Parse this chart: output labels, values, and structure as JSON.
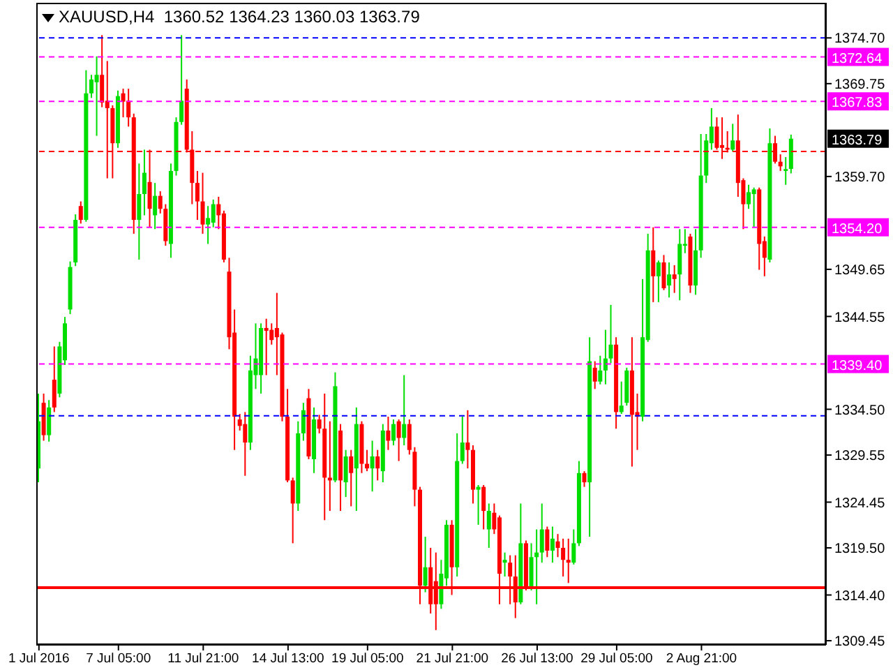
{
  "chart_data": {
    "type": "candlestick",
    "title": "XAUUSD,H4  1360.52 1364.23 1360.03 1363.79",
    "categories": [
      "1 Jul 2016",
      null,
      null,
      null,
      null,
      null,
      null,
      null,
      null,
      null,
      null,
      null,
      null,
      null,
      null,
      "7 Jul 05:00",
      null,
      null,
      null,
      null,
      null,
      null,
      null,
      null,
      null,
      null,
      null,
      null,
      null,
      null,
      null,
      "11 Jul 21:00",
      null,
      null,
      null,
      null,
      null,
      null,
      null,
      null,
      null,
      null,
      null,
      null,
      null,
      null,
      null,
      "14 Jul 13:00",
      null,
      null,
      null,
      null,
      null,
      null,
      null,
      null,
      null,
      null,
      null,
      null,
      null,
      null,
      "19 Jul 05:00",
      null,
      null,
      null,
      null,
      null,
      null,
      null,
      null,
      null,
      null,
      null,
      null,
      null,
      null,
      null,
      "21 Jul 21:00",
      null,
      null,
      null,
      null,
      null,
      null,
      null,
      null,
      null,
      null,
      null,
      null,
      null,
      null,
      null,
      "26 Jul 13:00",
      null,
      null,
      null,
      null,
      null,
      null,
      null,
      null,
      null,
      null,
      null,
      null,
      null,
      null,
      "29 Jul 05:00",
      null,
      null,
      null,
      null,
      null,
      null,
      null,
      null,
      null,
      null,
      null,
      null,
      null,
      null,
      null,
      "2 Aug 21:00",
      null,
      null,
      null,
      null,
      null,
      null,
      null,
      null,
      null,
      null,
      null,
      null,
      null,
      null,
      null,
      null,
      null,
      null,
      null,
      null,
      null,
      null,
      null
    ],
    "ohlc": [
      [
        1328.1,
        1336.2,
        1326.6,
        1333.2
      ],
      [
        1335.2,
        1336.2,
        1331.1,
        1331.7
      ],
      [
        1331.7,
        1335.5,
        1331.0,
        1334.7
      ],
      [
        1337.7,
        1341.3,
        1334.2,
        1334.7
      ],
      [
        1336.2,
        1341.8,
        1335.8,
        1341.3
      ],
      [
        1339.8,
        1344.5,
        1339.3,
        1343.8
      ],
      [
        1345.3,
        1350.5,
        1344.8,
        1349.9
      ],
      [
        1350.4,
        1355.6,
        1350.0,
        1355.0
      ],
      [
        1356.5,
        1357.0,
        1354.6,
        1355.0
      ],
      [
        1355.0,
        1371.2,
        1354.8,
        1368.7
      ],
      [
        1368.7,
        1370.7,
        1368.2,
        1370.2
      ],
      [
        1369.9,
        1372.7,
        1364.1,
        1370.7
      ],
      [
        1370.7,
        1375.0,
        1367.2,
        1367.7
      ],
      [
        1367.9,
        1372.2,
        1359.5,
        1367.1
      ],
      [
        1367.1,
        1367.4,
        1359.5,
        1363.3
      ],
      [
        1363.3,
        1369.0,
        1362.8,
        1368.4
      ],
      [
        1368.7,
        1369.2,
        1366.1,
        1367.8
      ],
      [
        1367.9,
        1369.2,
        1365.1,
        1366.1
      ],
      [
        1366.1,
        1366.5,
        1353.5,
        1355.0
      ],
      [
        1355.0,
        1361.1,
        1350.7,
        1357.8
      ],
      [
        1357.8,
        1362.6,
        1355.5,
        1360.1
      ],
      [
        1359.1,
        1362.6,
        1354.2,
        1356.2
      ],
      [
        1355.5,
        1359.0,
        1354.0,
        1357.6
      ],
      [
        1357.6,
        1358.1,
        1355.7,
        1356.2
      ],
      [
        1356.2,
        1356.7,
        1352.2,
        1352.7
      ],
      [
        1352.4,
        1361.1,
        1350.9,
        1360.3
      ],
      [
        1360.3,
        1366.1,
        1359.8,
        1365.6
      ],
      [
        1365.6,
        1375.0,
        1365.3,
        1367.9
      ],
      [
        1369.2,
        1370.2,
        1362.3,
        1362.6
      ],
      [
        1362.6,
        1364.6,
        1356.7,
        1359.0
      ],
      [
        1359.0,
        1360.3,
        1355.0,
        1357.0
      ],
      [
        1357.0,
        1360.1,
        1353.5,
        1354.5
      ],
      [
        1354.5,
        1356.5,
        1352.4,
        1355.2
      ],
      [
        1354.7,
        1357.2,
        1354.2,
        1356.7
      ],
      [
        1356.7,
        1357.5,
        1354.0,
        1355.5
      ],
      [
        1355.7,
        1356.0,
        1350.4,
        1350.7
      ],
      [
        1349.4,
        1350.9,
        1341.0,
        1342.3
      ],
      [
        1342.8,
        1345.3,
        1330.1,
        1333.7
      ],
      [
        1333.4,
        1334.0,
        1332.2,
        1332.7
      ],
      [
        1332.9,
        1334.2,
        1327.3,
        1330.9
      ],
      [
        1330.9,
        1340.3,
        1330.1,
        1338.7
      ],
      [
        1338.2,
        1343.8,
        1336.7,
        1340.0
      ],
      [
        1338.2,
        1343.8,
        1336.2,
        1343.3
      ],
      [
        1343.3,
        1344.3,
        1338.2,
        1343.0
      ],
      [
        1343.1,
        1343.8,
        1341.5,
        1342.0
      ],
      [
        1343.3,
        1347.1,
        1338.2,
        1342.3
      ],
      [
        1342.6,
        1342.8,
        1333.2,
        1333.7
      ],
      [
        1333.7,
        1336.7,
        1326.6,
        1326.8
      ],
      [
        1326.8,
        1327.1,
        1320.0,
        1324.3
      ],
      [
        1324.3,
        1333.2,
        1323.5,
        1331.9
      ],
      [
        1331.9,
        1335.2,
        1331.1,
        1334.4
      ],
      [
        1335.7,
        1336.7,
        1329.1,
        1329.4
      ],
      [
        1329.1,
        1334.7,
        1327.6,
        1333.4
      ],
      [
        1333.4,
        1333.9,
        1331.9,
        1332.4
      ],
      [
        1332.4,
        1336.2,
        1322.5,
        1327.1
      ],
      [
        1327.1,
        1333.2,
        1323.5,
        1326.8
      ],
      [
        1326.8,
        1338.5,
        1326.6,
        1337.0
      ],
      [
        1332.2,
        1332.9,
        1323.5,
        1326.8
      ],
      [
        1326.6,
        1330.1,
        1325.0,
        1329.4
      ],
      [
        1329.4,
        1330.1,
        1324.0,
        1327.6
      ],
      [
        1328.1,
        1334.7,
        1323.5,
        1332.9
      ],
      [
        1332.9,
        1333.2,
        1327.6,
        1328.6
      ],
      [
        1328.6,
        1330.1,
        1327.8,
        1328.1
      ],
      [
        1328.1,
        1331.1,
        1325.6,
        1329.4
      ],
      [
        1329.4,
        1330.1,
        1326.8,
        1328.1
      ],
      [
        1327.8,
        1332.9,
        1326.6,
        1332.2
      ],
      [
        1332.2,
        1333.7,
        1330.1,
        1331.1
      ],
      [
        1331.1,
        1333.4,
        1330.6,
        1332.9
      ],
      [
        1333.2,
        1333.4,
        1328.9,
        1331.4
      ],
      [
        1331.4,
        1338.2,
        1330.6,
        1332.9
      ],
      [
        1332.9,
        1333.4,
        1329.6,
        1330.1
      ],
      [
        1329.9,
        1330.4,
        1324.0,
        1325.8
      ],
      [
        1325.8,
        1326.1,
        1313.4,
        1315.4
      ],
      [
        1315.4,
        1320.7,
        1314.7,
        1317.4
      ],
      [
        1317.4,
        1319.5,
        1312.4,
        1313.4
      ],
      [
        1315.9,
        1319.0,
        1310.6,
        1313.4
      ],
      [
        1313.4,
        1318.2,
        1312.9,
        1316.7
      ],
      [
        1316.2,
        1322.5,
        1315.4,
        1322.0
      ],
      [
        1322.0,
        1322.5,
        1314.4,
        1317.4
      ],
      [
        1317.4,
        1331.9,
        1316.4,
        1328.9
      ],
      [
        1328.9,
        1333.7,
        1328.6,
        1330.9
      ],
      [
        1330.9,
        1334.4,
        1328.1,
        1330.1
      ],
      [
        1330.1,
        1330.6,
        1324.3,
        1325.8
      ],
      [
        1325.8,
        1326.3,
        1322.0,
        1326.1
      ],
      [
        1326.1,
        1326.3,
        1321.5,
        1323.5
      ],
      [
        1321.5,
        1324.3,
        1319.5,
        1323.5
      ],
      [
        1323.3,
        1324.3,
        1321.0,
        1321.5
      ],
      [
        1322.8,
        1323.0,
        1313.4,
        1316.7
      ],
      [
        1317.9,
        1319.0,
        1316.4,
        1318.2
      ],
      [
        1317.9,
        1318.7,
        1313.4,
        1316.4
      ],
      [
        1316.4,
        1318.7,
        1311.9,
        1313.6
      ],
      [
        1313.6,
        1324.3,
        1313.4,
        1320.0
      ],
      [
        1320.0,
        1320.3,
        1314.9,
        1315.2
      ],
      [
        1315.2,
        1320.0,
        1314.9,
        1318.5
      ],
      [
        1318.5,
        1321.5,
        1313.4,
        1319.0
      ],
      [
        1319.0,
        1324.3,
        1317.9,
        1321.5
      ],
      [
        1321.5,
        1321.8,
        1318.5,
        1319.2
      ],
      [
        1319.2,
        1321.8,
        1317.9,
        1320.5
      ],
      [
        1320.2,
        1321.0,
        1318.5,
        1319.5
      ],
      [
        1319.5,
        1320.5,
        1316.4,
        1318.2
      ],
      [
        1318.2,
        1320.5,
        1315.7,
        1317.9
      ],
      [
        1317.9,
        1321.5,
        1317.7,
        1320.0
      ],
      [
        1320.0,
        1328.9,
        1319.7,
        1327.6
      ],
      [
        1327.6,
        1327.8,
        1326.1,
        1326.6
      ],
      [
        1326.6,
        1342.3,
        1320.7,
        1339.7
      ],
      [
        1339.0,
        1339.7,
        1336.7,
        1337.5
      ],
      [
        1337.5,
        1340.3,
        1337.2,
        1338.7
      ],
      [
        1338.7,
        1343.1,
        1337.2,
        1340.0
      ],
      [
        1340.0,
        1345.8,
        1339.5,
        1341.5
      ],
      [
        1341.5,
        1342.3,
        1332.4,
        1334.2
      ],
      [
        1334.2,
        1337.5,
        1334.0,
        1334.9
      ],
      [
        1335.2,
        1339.0,
        1334.9,
        1338.7
      ],
      [
        1338.7,
        1342.3,
        1328.3,
        1333.9
      ],
      [
        1334.2,
        1336.2,
        1330.1,
        1333.7
      ],
      [
        1333.7,
        1348.6,
        1333.2,
        1342.3
      ],
      [
        1342.0,
        1353.5,
        1341.8,
        1351.7
      ],
      [
        1351.7,
        1354.2,
        1346.1,
        1348.9
      ],
      [
        1348.9,
        1350.6,
        1346.1,
        1350.4
      ],
      [
        1350.4,
        1351.2,
        1347.4,
        1347.6
      ],
      [
        1347.9,
        1350.4,
        1346.6,
        1349.1
      ],
      [
        1349.1,
        1350.1,
        1347.1,
        1348.6
      ],
      [
        1349.1,
        1354.0,
        1346.3,
        1352.4
      ],
      [
        1352.2,
        1354.0,
        1351.4,
        1352.4
      ],
      [
        1353.2,
        1353.5,
        1347.1,
        1347.9
      ],
      [
        1347.9,
        1354.0,
        1346.9,
        1351.7
      ],
      [
        1351.7,
        1364.3,
        1350.9,
        1359.8
      ],
      [
        1359.8,
        1364.3,
        1359.0,
        1363.6
      ],
      [
        1363.3,
        1367.1,
        1362.6,
        1365.1
      ],
      [
        1365.1,
        1366.1,
        1362.6,
        1362.8
      ],
      [
        1363.1,
        1366.1,
        1361.6,
        1362.8
      ],
      [
        1362.8,
        1364.6,
        1362.3,
        1362.6
      ],
      [
        1362.6,
        1365.4,
        1362.4,
        1363.6
      ],
      [
        1363.6,
        1366.4,
        1357.5,
        1359.0
      ],
      [
        1359.3,
        1359.5,
        1354.0,
        1356.7
      ],
      [
        1356.7,
        1358.8,
        1356.2,
        1358.0
      ],
      [
        1357.8,
        1358.5,
        1354.2,
        1358.3
      ],
      [
        1358.3,
        1358.5,
        1349.6,
        1352.4
      ],
      [
        1352.7,
        1353.2,
        1348.9,
        1350.9
      ],
      [
        1350.7,
        1364.9,
        1350.4,
        1363.3
      ],
      [
        1363.3,
        1364.1,
        1361.1,
        1361.3
      ],
      [
        1361.3,
        1362.1,
        1360.3,
        1360.8
      ],
      [
        1360.3,
        1361.8,
        1358.8,
        1360.5
      ],
      [
        1360.52,
        1364.23,
        1360.03,
        1363.79
      ],
      null,
      null,
      null,
      null,
      null,
      null
    ],
    "colors": [
      "#00dd00",
      "#ff0000",
      "#00dd00",
      "#ff0000",
      "#00dd00",
      "#00dd00",
      "#00dd00",
      "#00dd00",
      "#ff0000",
      "#00dd00",
      "#00dd00",
      "#00dd00",
      "#ff0000",
      "#ff0000",
      "#ff0000",
      "#00dd00",
      "#ff0000",
      "#ff0000",
      "#ff0000",
      "#00dd00",
      "#00dd00",
      "#ff0000",
      "#00dd00",
      "#ff0000",
      "#ff0000",
      "#00dd00",
      "#00dd00",
      "#00dd00",
      "#ff0000",
      "#ff0000",
      "#ff0000",
      "#ff0000",
      "#00dd00",
      "#00dd00",
      "#ff0000",
      "#ff0000",
      "#ff0000",
      "#ff0000",
      "#ff0000",
      "#ff0000",
      "#00dd00",
      "#00dd00",
      "#00dd00",
      "#ff0000",
      "#ff0000",
      "#ff0000",
      "#ff0000",
      "#ff0000",
      "#ff0000",
      "#00dd00",
      "#00dd00",
      "#ff0000",
      "#00dd00",
      "#ff0000",
      "#ff0000",
      "#ff0000",
      "#00dd00",
      "#ff0000",
      "#00dd00",
      "#ff0000",
      "#00dd00",
      "#ff0000",
      "#ff0000",
      "#00dd00",
      "#ff0000",
      "#00dd00",
      "#ff0000",
      "#00dd00",
      "#ff0000",
      "#00dd00",
      "#ff0000",
      "#ff0000",
      "#ff0000",
      "#00dd00",
      "#ff0000",
      "#ff0000",
      "#00dd00",
      "#00dd00",
      "#ff0000",
      "#00dd00",
      "#00dd00",
      "#ff0000",
      "#ff0000",
      "#00dd00",
      "#ff0000",
      "#00dd00",
      "#ff0000",
      "#ff0000",
      "#00dd00",
      "#ff0000",
      "#ff0000",
      "#00dd00",
      "#ff0000",
      "#00dd00",
      "#00dd00",
      "#00dd00",
      "#ff0000",
      "#00dd00",
      "#ff0000",
      "#ff0000",
      "#ff0000",
      "#00dd00",
      "#00dd00",
      "#ff0000",
      "#00dd00",
      "#ff0000",
      "#00dd00",
      "#00dd00",
      "#00dd00",
      "#ff0000",
      "#00dd00",
      "#00dd00",
      "#ff0000",
      "#ff0000",
      "#00dd00",
      "#00dd00",
      "#ff0000",
      "#00dd00",
      "#ff0000",
      "#00dd00",
      "#ff0000",
      "#00dd00",
      "#00dd00",
      "#ff0000",
      "#00dd00",
      "#00dd00",
      "#00dd00",
      "#00dd00",
      "#ff0000",
      "#ff0000",
      "#ff0000",
      "#00dd00",
      "#ff0000",
      "#ff0000",
      "#00dd00",
      "#00dd00",
      "#ff0000",
      "#ff0000",
      "#00dd00",
      "#ff0000",
      "#ff0000",
      "#00dd00",
      "#00dd00",
      null,
      null,
      null,
      null,
      null,
      null
    ],
    "ylim": [
      1309.0,
      1378.5
    ],
    "yticks": [
      {
        "value": 1309.45,
        "label": "1309.45"
      },
      {
        "value": 1314.4,
        "label": "1314.40"
      },
      {
        "value": 1319.5,
        "label": "1319.50"
      },
      {
        "value": 1324.45,
        "label": "1324.45"
      },
      {
        "value": 1329.55,
        "label": "1329.55"
      },
      {
        "value": 1334.5,
        "label": "1334.50"
      },
      {
        "value": 1344.55,
        "label": "1344.55"
      },
      {
        "value": 1349.65,
        "label": "1349.65"
      },
      {
        "value": 1359.7,
        "label": "1359.70"
      },
      {
        "value": 1369.75,
        "label": "1369.75"
      },
      {
        "value": 1374.7,
        "label": "1374.70"
      }
    ],
    "ref_lines": [
      {
        "axis": "y",
        "value": 1372.64,
        "label": "1372.64",
        "color": "#ff00ff",
        "line_style": "dashed"
      },
      {
        "axis": "y",
        "value": 1367.83,
        "label": "1367.83",
        "color": "#ff00ff",
        "line_style": "dashed"
      },
      {
        "axis": "y",
        "value": 1354.2,
        "label": "1354.20",
        "color": "#ff00ff",
        "line_style": "dashed"
      },
      {
        "axis": "y",
        "value": 1339.4,
        "label": "1339.40",
        "color": "#ff00ff",
        "line_style": "dashed"
      },
      {
        "axis": "y",
        "value": 1374.7,
        "color": "#0000ff",
        "line_style": "dashed"
      },
      {
        "axis": "y",
        "value": 1362.4,
        "color": "#ff0000",
        "line_style": "dashed"
      },
      {
        "axis": "y",
        "value": 1333.8,
        "color": "#0000ff",
        "line_style": "dashed"
      },
      {
        "axis": "y",
        "value": 1315.2,
        "color": "#ff0000",
        "line_style": "solid"
      }
    ],
    "annotations": [
      "1363.79"
    ]
  }
}
